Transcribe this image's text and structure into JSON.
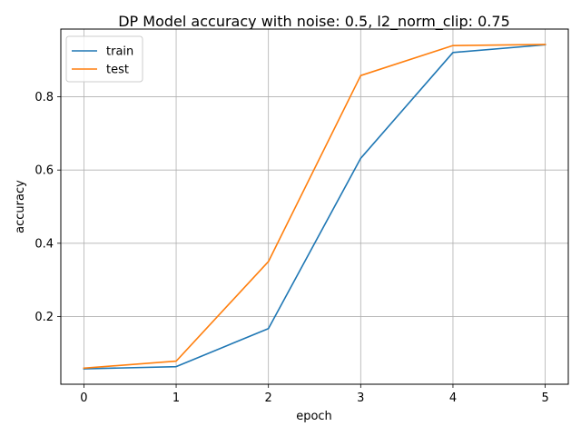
{
  "chart_data": {
    "type": "line",
    "title": "DP Model accuracy with noise: 0.5, l2_norm_clip: 0.75",
    "xlabel": "epoch",
    "ylabel": "accuracy",
    "x": [
      0,
      1,
      2,
      3,
      4,
      5
    ],
    "xlim": [
      -0.25,
      5.25
    ],
    "ylim": [
      0.015,
      0.985
    ],
    "xticks": [
      0,
      1,
      2,
      3,
      4,
      5
    ],
    "yticks": [
      0.2,
      0.4,
      0.6,
      0.8
    ],
    "ytick_labels": [
      "0.2",
      "0.4",
      "0.6",
      "0.8"
    ],
    "grid": true,
    "legend_position": "upper-left",
    "series": [
      {
        "name": "train",
        "color": "#1f77b4",
        "values": [
          0.057,
          0.063,
          0.167,
          0.632,
          0.921,
          0.942
        ]
      },
      {
        "name": "test",
        "color": "#ff7f0e",
        "values": [
          0.059,
          0.078,
          0.35,
          0.858,
          0.94,
          0.943
        ]
      }
    ]
  }
}
